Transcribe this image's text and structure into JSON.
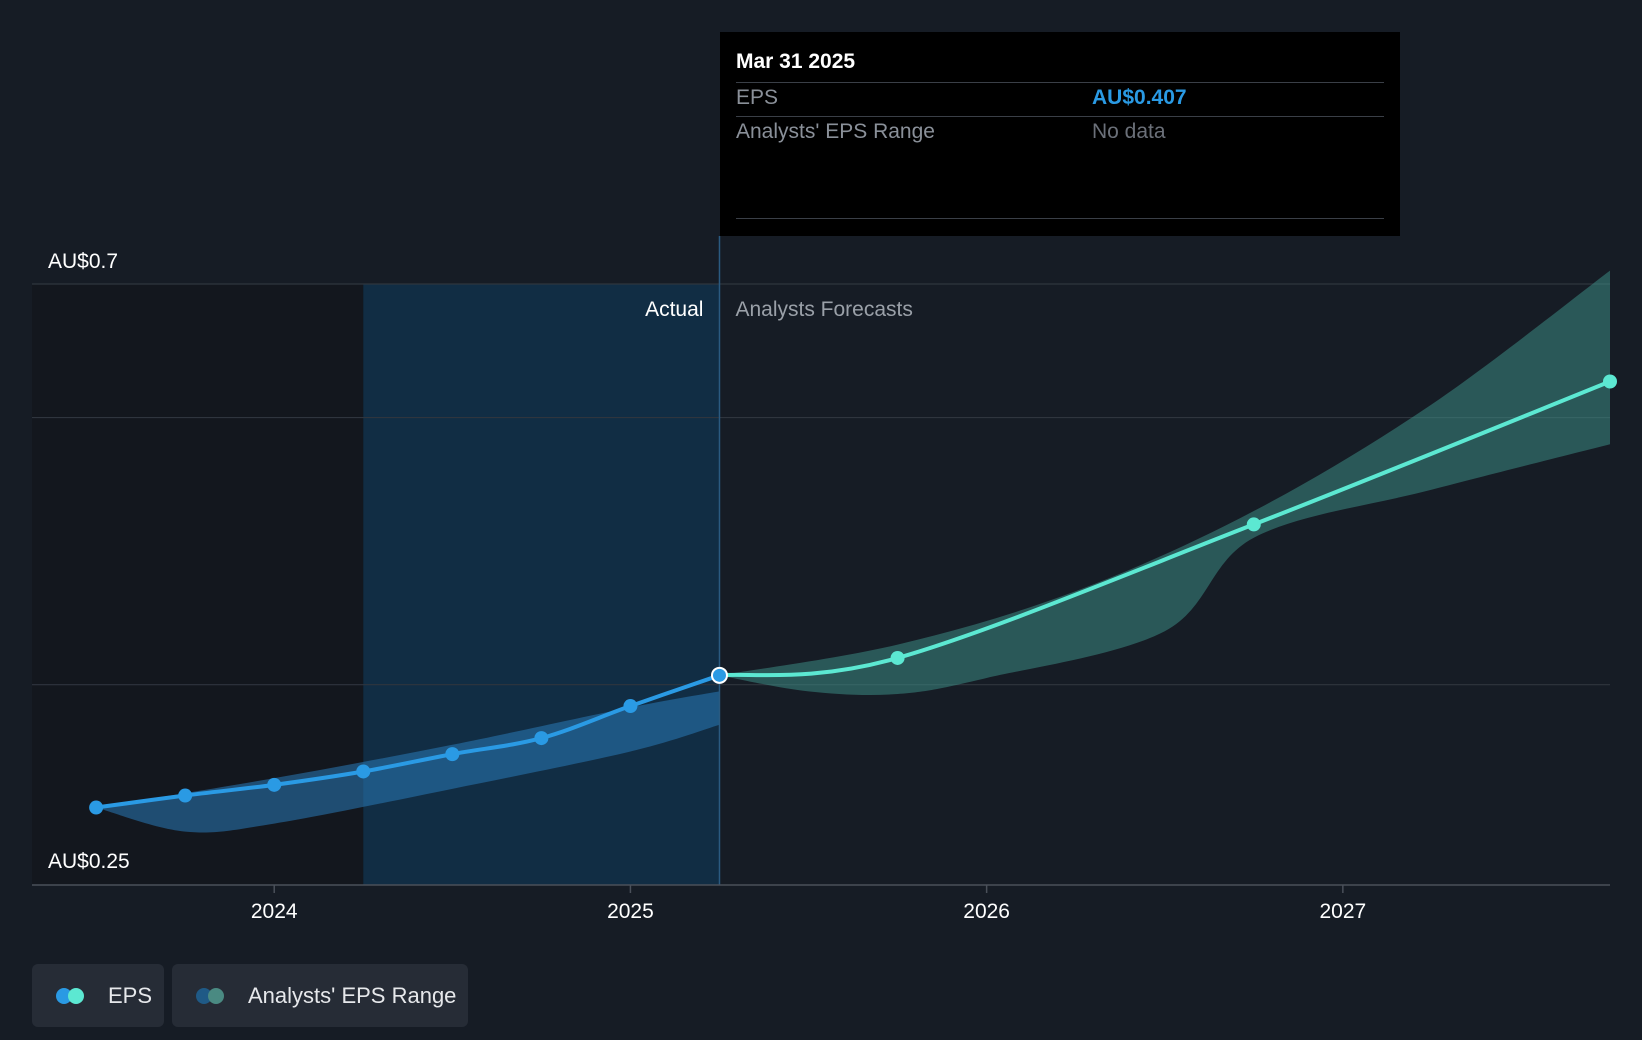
{
  "tooltip": {
    "date": "Mar 31 2025",
    "rows": [
      {
        "label": "EPS",
        "value": "AU$0.407",
        "color": "#2a9ae4"
      },
      {
        "label": "Analysts' EPS Range",
        "value": "No data",
        "color": "#6b7079"
      }
    ]
  },
  "legend": [
    {
      "label": "EPS",
      "colors": [
        "#2a9ae4",
        "#5ce8d2"
      ]
    },
    {
      "label": "Analysts' EPS Range",
      "colors": [
        "#1f5a86",
        "#4a8a82"
      ]
    }
  ],
  "chart_data": {
    "type": "line",
    "y_axis_labels": [
      "AU$0.7",
      "AU$0.25"
    ],
    "ylim": [
      0.25,
      0.7
    ],
    "x_tick_labels": [
      "2024",
      "2025",
      "2026",
      "2027"
    ],
    "x_ticks": [
      2024.0,
      2025.0,
      2026.0,
      2027.0
    ],
    "xlim": [
      2023.32,
      2027.75
    ],
    "region_labels": {
      "actual": "Actual",
      "forecast": "Analysts Forecasts"
    },
    "gridlines_y": [
      0.7,
      0.6,
      0.4
    ],
    "highlight_range": [
      2024.25,
      2025.25
    ],
    "divider_x": 2025.25,
    "colors": {
      "actual": "#2a9ae4",
      "forecast": "#5ce8d2",
      "actual_band": "#2a7ab8",
      "forecast_band": "#3d8a84"
    },
    "series": [
      {
        "name": "EPS",
        "role": "actual",
        "points": [
          [
            2023.5,
            0.308
          ],
          [
            2023.75,
            0.317
          ],
          [
            2024.0,
            0.325
          ],
          [
            2024.25,
            0.335
          ],
          [
            2024.5,
            0.348
          ],
          [
            2024.75,
            0.36
          ],
          [
            2025.0,
            0.384
          ],
          [
            2025.25,
            0.407
          ]
        ]
      },
      {
        "name": "EPS",
        "role": "forecast",
        "points": [
          [
            2025.25,
            0.407
          ],
          [
            2025.75,
            0.42
          ],
          [
            2026.75,
            0.52
          ],
          [
            2027.75,
            0.627
          ]
        ]
      }
    ],
    "bands": [
      {
        "role": "actual",
        "upper": [
          [
            2023.5,
            0.308
          ],
          [
            2024.0,
            0.33
          ],
          [
            2024.5,
            0.355
          ],
          [
            2025.0,
            0.383
          ],
          [
            2025.25,
            0.395
          ]
        ],
        "lower": [
          [
            2023.5,
            0.308
          ],
          [
            2023.75,
            0.29
          ],
          [
            2024.0,
            0.296
          ],
          [
            2024.5,
            0.322
          ],
          [
            2025.0,
            0.35
          ],
          [
            2025.25,
            0.37
          ]
        ]
      },
      {
        "role": "forecast",
        "upper": [
          [
            2025.25,
            0.407
          ],
          [
            2025.75,
            0.43
          ],
          [
            2026.25,
            0.47
          ],
          [
            2026.75,
            0.53
          ],
          [
            2027.25,
            0.61
          ],
          [
            2027.75,
            0.71
          ]
        ],
        "lower": [
          [
            2025.25,
            0.407
          ],
          [
            2025.5,
            0.395
          ],
          [
            2025.75,
            0.393
          ],
          [
            2026.0,
            0.405
          ],
          [
            2026.5,
            0.44
          ],
          [
            2026.75,
            0.51
          ],
          [
            2027.25,
            0.546
          ],
          [
            2027.75,
            0.58
          ]
        ]
      }
    ]
  }
}
